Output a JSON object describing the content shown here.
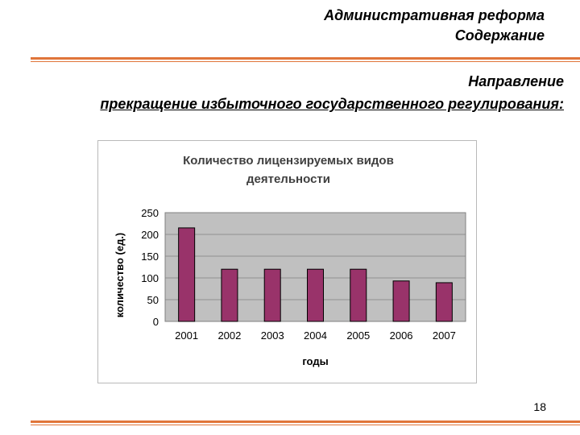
{
  "header": {
    "title_line1": "Административная реформа",
    "title_line2": "Содержание"
  },
  "section": {
    "line1": "Направление",
    "line2": "прекращение избыточного государственного регулирования:"
  },
  "colors": {
    "accent_rule": "#e0753a",
    "bar_fill": "#99336a",
    "plot_background": "#c0c0c0"
  },
  "chart_data": {
    "type": "bar",
    "title": "Количество лицензируемых видов деятельности",
    "title_lines": [
      "Количество лицензируемых видов",
      "деятельности"
    ],
    "xlabel": "годы",
    "ylabel": "количество (ед.)",
    "categories": [
      "2001",
      "2002",
      "2003",
      "2004",
      "2005",
      "2006",
      "2007"
    ],
    "values": [
      215,
      120,
      120,
      120,
      120,
      93,
      89
    ],
    "ylim": [
      0,
      250
    ],
    "yticks": [
      0,
      50,
      100,
      150,
      200,
      250
    ],
    "grid": true,
    "legend": false
  },
  "footer": {
    "page_number": "18"
  }
}
